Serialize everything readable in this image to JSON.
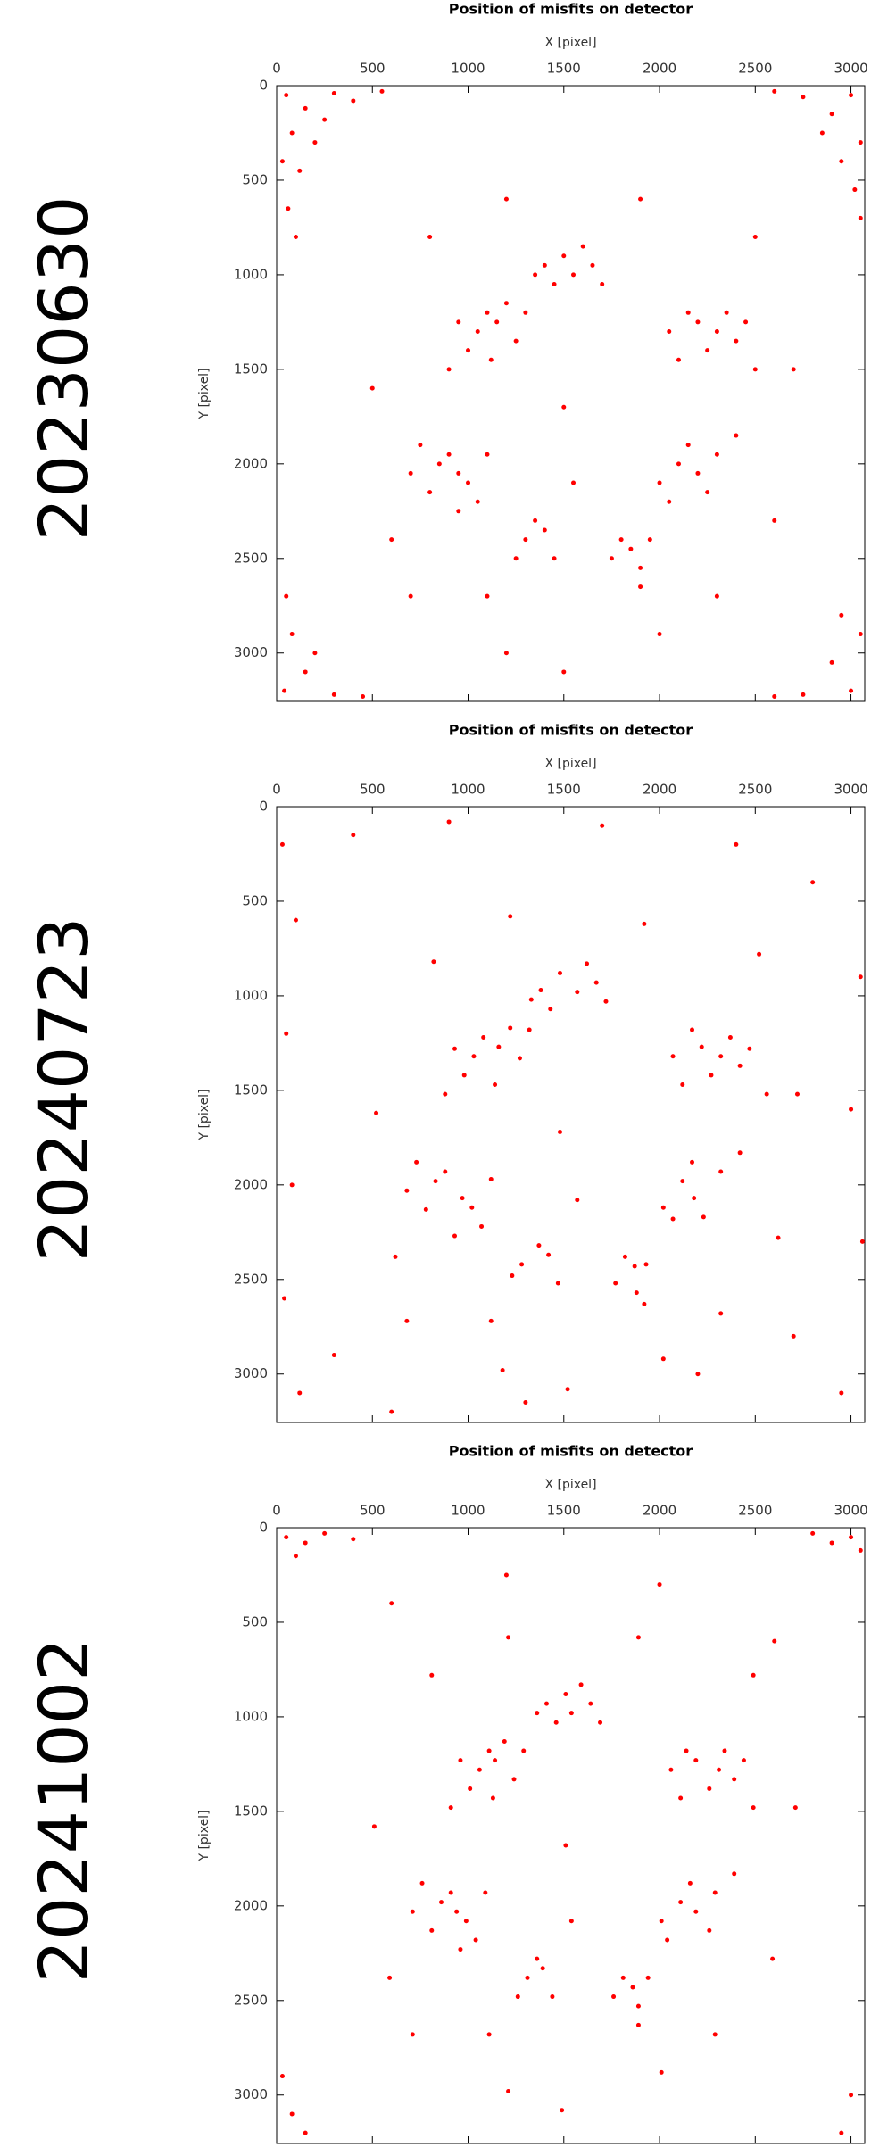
{
  "chart_data": [
    {
      "type": "scatter",
      "title": "Position of misfits on detector",
      "xlabel": "X [pixel]",
      "ylabel": "Y [pixel]",
      "panel_label": "20230630",
      "color": "#ff0000",
      "y_inverted": true,
      "xlim": [
        0,
        3072
      ],
      "ylim": [
        0,
        3256
      ],
      "xticks": [
        0,
        500,
        1000,
        1500,
        2000,
        2500,
        3000
      ],
      "yticks": [
        0,
        500,
        1000,
        1500,
        2000,
        2500,
        3000
      ],
      "x": [
        50,
        150,
        300,
        80,
        200,
        400,
        30,
        120,
        550,
        250,
        60,
        100,
        3000,
        2900,
        2750,
        3050,
        2950,
        2600,
        3020,
        2850,
        3050,
        40,
        150,
        300,
        80,
        200,
        50,
        450,
        3000,
        2900,
        2750,
        3050,
        2950,
        2600,
        1100,
        1150,
        1050,
        1200,
        1000,
        950,
        1250,
        900,
        1300,
        1120,
        2200,
        2300,
        2150,
        2250,
        2400,
        2100,
        2350,
        2500,
        2050,
        2450,
        850,
        950,
        900,
        1000,
        800,
        1100,
        750,
        1050,
        950,
        700,
        2100,
        2200,
        2000,
        2300,
        2150,
        2050,
        2250,
        2400,
        1500,
        1550,
        1400,
        1650,
        1450,
        1600,
        1350,
        1700,
        1300,
        1400,
        1250,
        1450,
        1350,
        1850,
        1900,
        1800,
        1950,
        1900,
        1750,
        500,
        600,
        700,
        1200,
        1500,
        2000,
        2600,
        2700,
        2500,
        800,
        1200,
        1900,
        1500,
        1550,
        1100,
        2300
      ],
      "y": [
        50,
        120,
        40,
        250,
        300,
        80,
        400,
        450,
        30,
        180,
        650,
        800,
        50,
        150,
        60,
        300,
        400,
        30,
        550,
        250,
        700,
        3200,
        3100,
        3220,
        2900,
        3000,
        2700,
        3230,
        3200,
        3050,
        3220,
        2900,
        2800,
        3230,
        1200,
        1250,
        1300,
        1150,
        1400,
        1250,
        1350,
        1500,
        1200,
        1450,
        1250,
        1300,
        1200,
        1400,
        1350,
        1450,
        1200,
        1500,
        1300,
        1250,
        2000,
        2050,
        1950,
        2100,
        2150,
        1950,
        1900,
        2200,
        2250,
        2050,
        2000,
        2050,
        2100,
        1950,
        1900,
        2200,
        2150,
        1850,
        900,
        1000,
        950,
        950,
        1050,
        850,
        1000,
        1050,
        2400,
        2350,
        2500,
        2500,
        2300,
        2450,
        2550,
        2400,
        2400,
        2650,
        2500,
        1600,
        2400,
        2700,
        3000,
        3100,
        2900,
        2300,
        1500,
        800,
        800,
        600,
        600,
        1700,
        2100,
        2700,
        2700
      ]
    },
    {
      "type": "scatter",
      "title": "Position of misfits on detector",
      "xlabel": "X [pixel]",
      "ylabel": "Y [pixel]",
      "panel_label": "20240723",
      "color": "#ff0000",
      "y_inverted": true,
      "xlim": [
        0,
        3072
      ],
      "ylim": [
        0,
        3256
      ],
      "xticks": [
        0,
        500,
        1000,
        1500,
        2000,
        2500,
        3000
      ],
      "yticks": [
        0,
        500,
        1000,
        1500,
        2000,
        2500,
        3000
      ],
      "x": [
        30,
        100,
        50,
        80,
        40,
        120,
        3050,
        3000,
        3060,
        2950,
        400,
        900,
        1700,
        2400,
        2800,
        300,
        2700,
        600,
        1300,
        2200,
        1080,
        1160,
        1030,
        1220,
        980,
        930,
        1270,
        880,
        1320,
        1140,
        2220,
        2320,
        2170,
        2270,
        2420,
        2120,
        2370,
        2560,
        2070,
        2470,
        830,
        970,
        880,
        1020,
        780,
        1120,
        730,
        1070,
        930,
        680,
        2120,
        2180,
        2020,
        2320,
        2170,
        2070,
        2230,
        2420,
        1480,
        1570,
        1380,
        1670,
        1430,
        1620,
        1330,
        1720,
        1280,
        1420,
        1230,
        1470,
        1370,
        1870,
        1880,
        1820,
        1930,
        1920,
        1770,
        520,
        620,
        680,
        1180,
        1520,
        2020,
        2620,
        2720,
        2520,
        820,
        1220,
        1920,
        1480,
        1570,
        1120,
        2320
      ],
      "y": [
        200,
        600,
        1200,
        2000,
        2600,
        3100,
        900,
        1600,
        2300,
        3100,
        150,
        80,
        100,
        200,
        400,
        2900,
        2800,
        3200,
        3150,
        3000,
        1220,
        1270,
        1320,
        1170,
        1420,
        1280,
        1330,
        1520,
        1180,
        1470,
        1270,
        1320,
        1180,
        1420,
        1370,
        1470,
        1220,
        1520,
        1320,
        1280,
        1980,
        2070,
        1930,
        2120,
        2130,
        1970,
        1880,
        2220,
        2270,
        2030,
        1980,
        2070,
        2120,
        1930,
        1880,
        2180,
        2170,
        1830,
        880,
        980,
        970,
        930,
        1070,
        830,
        1020,
        1030,
        2420,
        2370,
        2480,
        2520,
        2320,
        2430,
        2570,
        2380,
        2420,
        2630,
        2520,
        1620,
        2380,
        2720,
        2980,
        3080,
        2920,
        2280,
        1520,
        780,
        820,
        580,
        620,
        1720,
        2080,
        2720,
        2680
      ]
    },
    {
      "type": "scatter",
      "title": "Position of misfits on detector",
      "xlabel": "X [pixel]",
      "ylabel": "Y [pixel]",
      "panel_label": "20241002",
      "color": "#ff0000",
      "y_inverted": true,
      "xlim": [
        0,
        3072
      ],
      "ylim": [
        0,
        3256
      ],
      "xticks": [
        0,
        500,
        1000,
        1500,
        2000,
        2500,
        3000
      ],
      "yticks": [
        0,
        500,
        1000,
        1500,
        2000,
        2500,
        3000
      ],
      "x": [
        50,
        150,
        250,
        400,
        100,
        3000,
        3050,
        2900,
        2800,
        30,
        80,
        150,
        3000,
        2950,
        600,
        1200,
        2000,
        2600,
        1110,
        1140,
        1060,
        1190,
        1010,
        960,
        1240,
        910,
        1290,
        1130,
        2190,
        2310,
        2140,
        2260,
        2390,
        2110,
        2340,
        2490,
        2060,
        2440,
        860,
        940,
        910,
        990,
        810,
        1090,
        760,
        1040,
        960,
        710,
        2110,
        2190,
        2010,
        2290,
        2160,
        2040,
        2260,
        2390,
        1510,
        1540,
        1410,
        1640,
        1460,
        1590,
        1360,
        1690,
        1310,
        1390,
        1260,
        1440,
        1360,
        1860,
        1890,
        1810,
        1940,
        1890,
        1760,
        510,
        590,
        710,
        1210,
        1490,
        2010,
        2590,
        2710,
        2490,
        810,
        1210,
        1890,
        1510,
        1540,
        1110,
        2290
      ],
      "y": [
        50,
        80,
        30,
        60,
        150,
        50,
        120,
        80,
        30,
        2900,
        3100,
        3200,
        3000,
        3200,
        400,
        250,
        300,
        600,
        1180,
        1230,
        1280,
        1130,
        1380,
        1230,
        1330,
        1480,
        1180,
        1430,
        1230,
        1280,
        1180,
        1380,
        1330,
        1430,
        1180,
        1480,
        1280,
        1230,
        1980,
        2030,
        1930,
        2080,
        2130,
        1930,
        1880,
        2180,
        2230,
        2030,
        1980,
        2030,
        2080,
        1930,
        1880,
        2180,
        2130,
        1830,
        880,
        980,
        930,
        930,
        1030,
        830,
        980,
        1030,
        2380,
        2330,
        2480,
        2480,
        2280,
        2430,
        2530,
        2380,
        2380,
        2630,
        2480,
        1580,
        2380,
        2680,
        2980,
        3080,
        2880,
        2280,
        1480,
        780,
        780,
        580,
        580,
        1680,
        2080,
        2680,
        2680
      ]
    }
  ]
}
